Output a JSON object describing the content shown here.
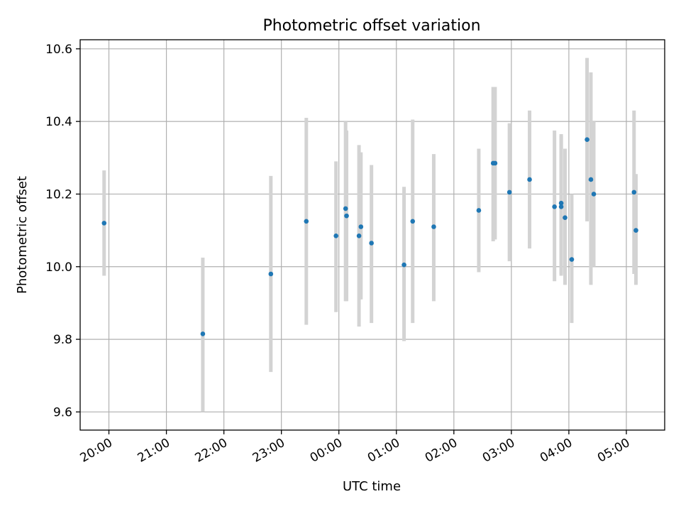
{
  "chart_data": {
    "type": "scatter",
    "title": "Photometric offset variation",
    "xlabel": "UTC time",
    "ylabel": "Photometric offset",
    "x_is_time": true,
    "xlim": [
      "19:30",
      "05:40"
    ],
    "ylim": [
      9.55,
      10.625
    ],
    "xticks": [
      "20:00",
      "21:00",
      "22:00",
      "23:00",
      "00:00",
      "01:00",
      "02:00",
      "03:00",
      "04:00",
      "05:00"
    ],
    "yticks": [
      "9.6",
      "9.8",
      "10.0",
      "10.2",
      "10.4",
      "10.6"
    ],
    "grid": true,
    "point_color": "#1f77b4",
    "errorbar_color": "#d3d3d3",
    "points": [
      {
        "x": "19:55",
        "y": 10.12,
        "ylo": 9.975,
        "yhi": 10.265
      },
      {
        "x": "21:38",
        "y": 9.815,
        "ylo": 9.6,
        "yhi": 10.025
      },
      {
        "x": "22:49",
        "y": 9.98,
        "ylo": 9.71,
        "yhi": 10.25
      },
      {
        "x": "23:26",
        "y": 10.125,
        "ylo": 9.84,
        "yhi": 10.41
      },
      {
        "x": "23:57",
        "y": 10.085,
        "ylo": 9.875,
        "yhi": 10.29
      },
      {
        "x": "00:07",
        "y": 10.16,
        "ylo": 9.905,
        "yhi": 10.4
      },
      {
        "x": "00:08",
        "y": 10.14,
        "ylo": 9.905,
        "yhi": 10.375
      },
      {
        "x": "00:21",
        "y": 10.085,
        "ylo": 9.835,
        "yhi": 10.335
      },
      {
        "x": "00:23",
        "y": 10.11,
        "ylo": 9.91,
        "yhi": 10.315
      },
      {
        "x": "00:34",
        "y": 10.065,
        "ylo": 9.845,
        "yhi": 10.28
      },
      {
        "x": "01:08",
        "y": 10.005,
        "ylo": 9.795,
        "yhi": 10.22
      },
      {
        "x": "01:17",
        "y": 10.125,
        "ylo": 9.845,
        "yhi": 10.405
      },
      {
        "x": "01:39",
        "y": 10.11,
        "ylo": 9.905,
        "yhi": 10.31
      },
      {
        "x": "02:26",
        "y": 10.155,
        "ylo": 9.985,
        "yhi": 10.325
      },
      {
        "x": "02:41",
        "y": 10.285,
        "ylo": 10.07,
        "yhi": 10.495
      },
      {
        "x": "02:43",
        "y": 10.285,
        "ylo": 10.075,
        "yhi": 10.495
      },
      {
        "x": "02:58",
        "y": 10.205,
        "ylo": 10.015,
        "yhi": 10.395
      },
      {
        "x": "03:19",
        "y": 10.24,
        "ylo": 10.05,
        "yhi": 10.43
      },
      {
        "x": "03:45",
        "y": 10.165,
        "ylo": 9.96,
        "yhi": 10.375
      },
      {
        "x": "03:52",
        "y": 10.175,
        "ylo": 9.98,
        "yhi": 10.365
      },
      {
        "x": "03:52",
        "y": 10.165,
        "ylo": 9.975,
        "yhi": 10.36
      },
      {
        "x": "03:56",
        "y": 10.135,
        "ylo": 9.95,
        "yhi": 10.325
      },
      {
        "x": "04:03",
        "y": 10.02,
        "ylo": 9.845,
        "yhi": 10.2
      },
      {
        "x": "04:19",
        "y": 10.35,
        "ylo": 10.125,
        "yhi": 10.575
      },
      {
        "x": "04:23",
        "y": 10.24,
        "ylo": 9.95,
        "yhi": 10.535
      },
      {
        "x": "04:26",
        "y": 10.2,
        "ylo": 10.0,
        "yhi": 10.4
      },
      {
        "x": "05:08",
        "y": 10.205,
        "ylo": 9.98,
        "yhi": 10.43
      },
      {
        "x": "05:10",
        "y": 10.1,
        "ylo": 9.95,
        "yhi": 10.255
      }
    ]
  }
}
